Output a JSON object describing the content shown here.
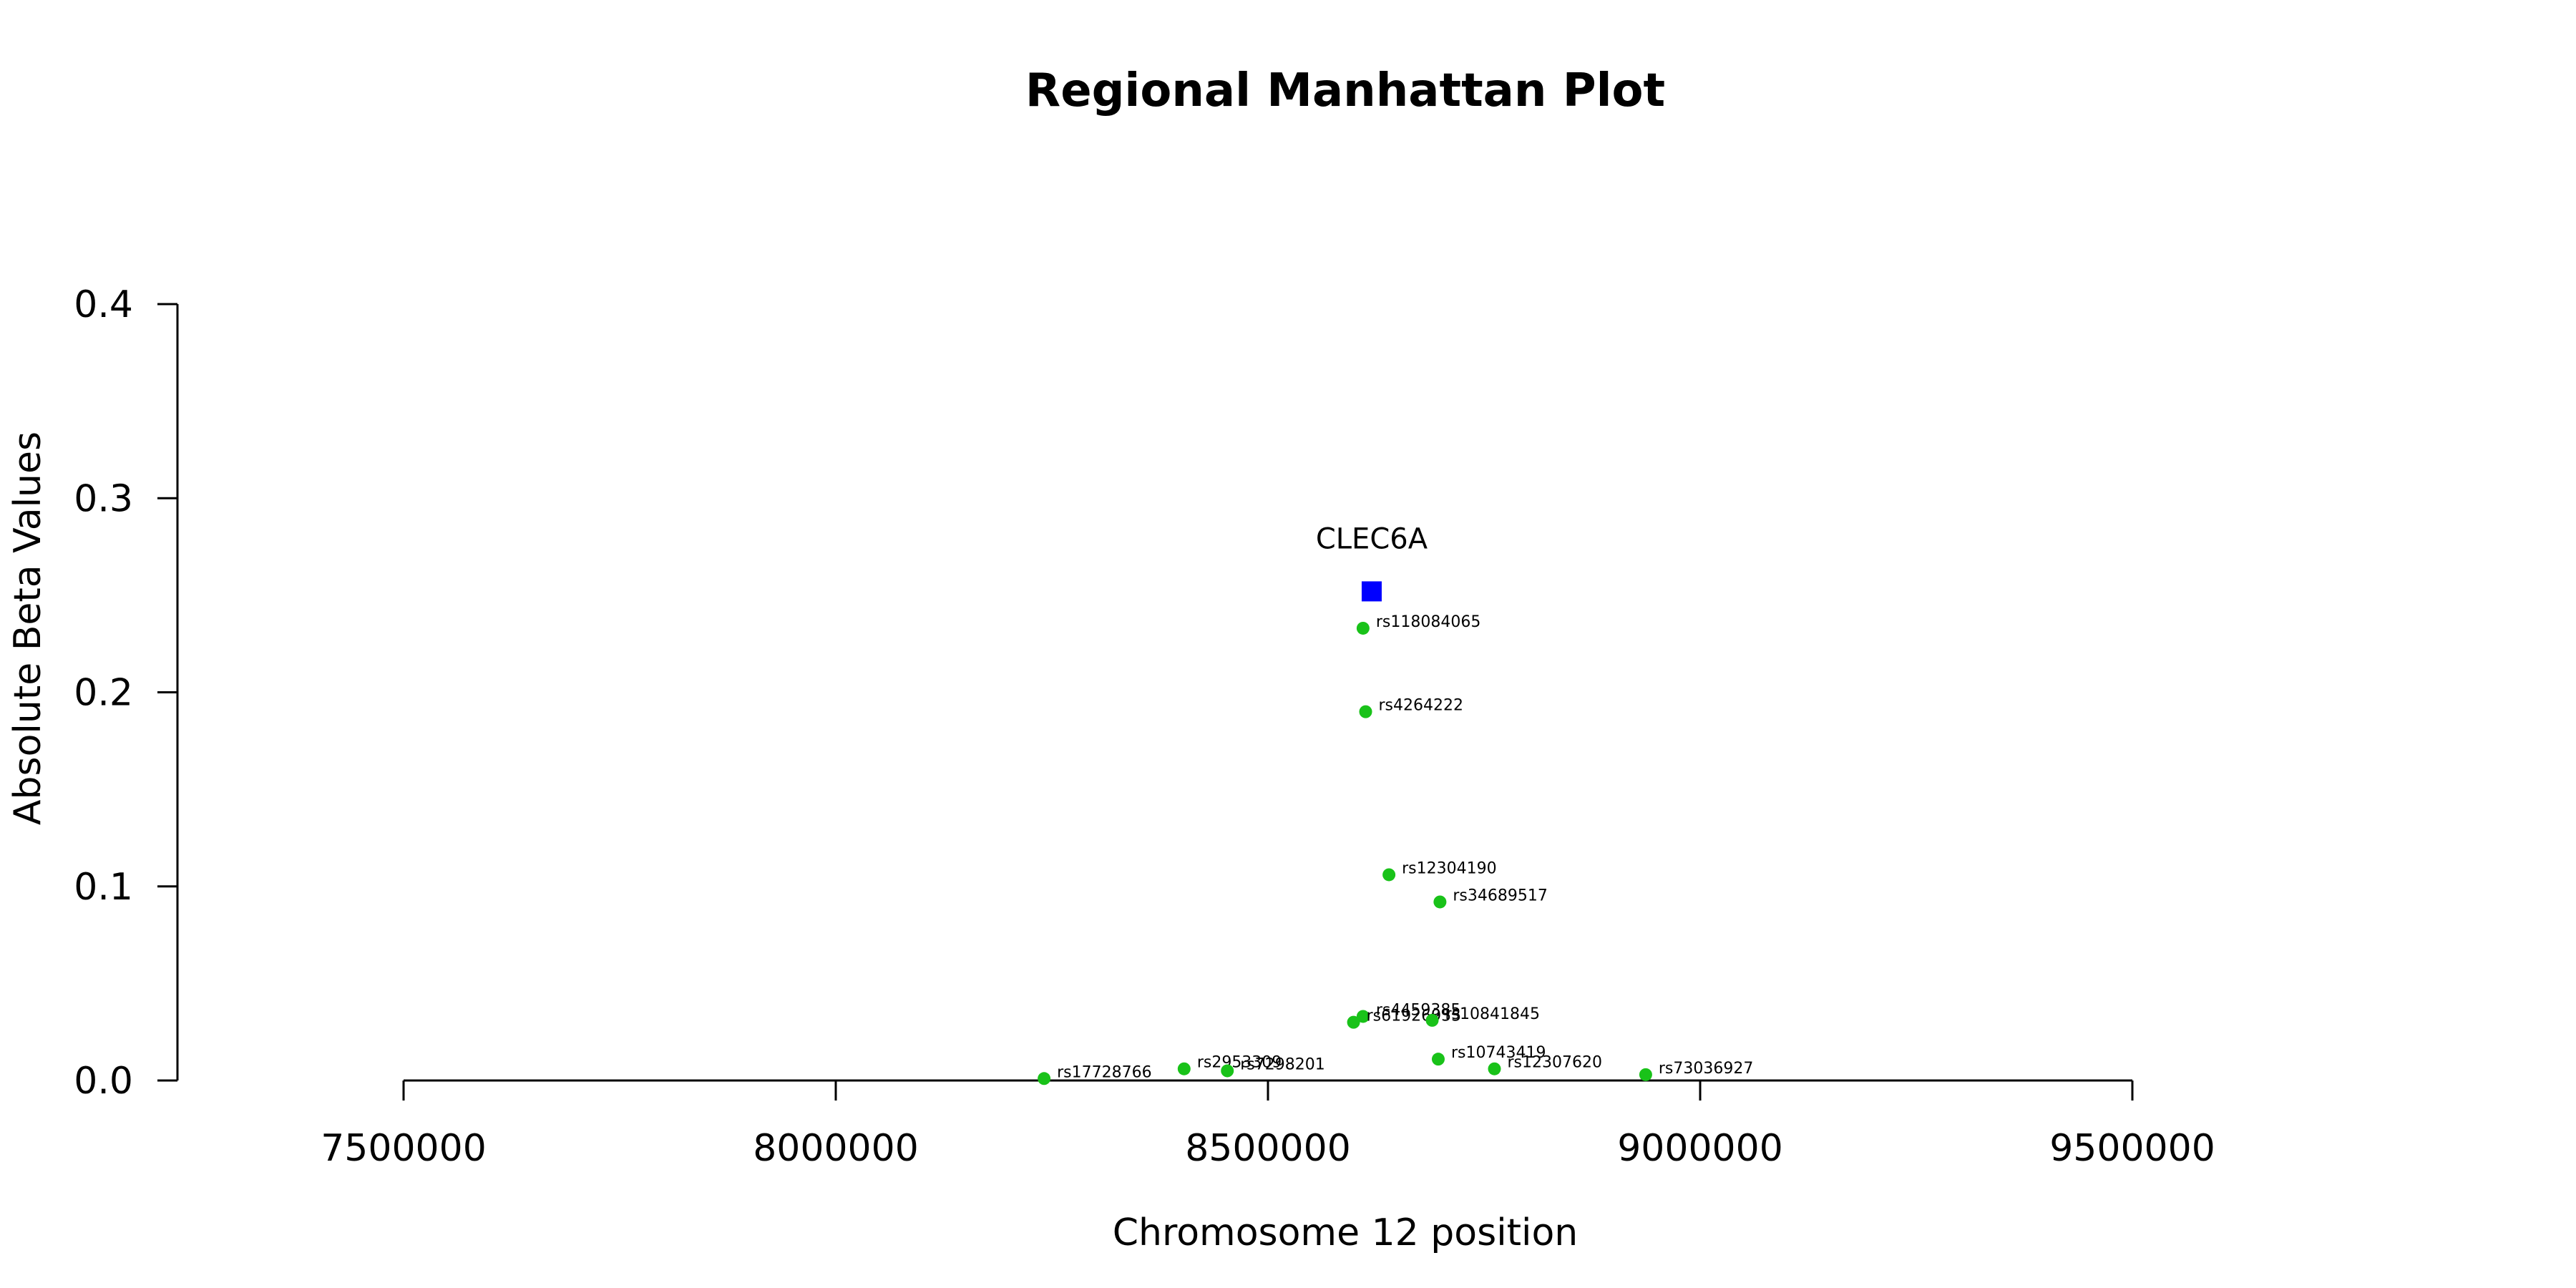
{
  "chart_data": {
    "type": "scatter",
    "title": "Regional Manhattan Plot",
    "xlabel": "Chromosome 12 position",
    "ylabel": "Absolute Beta Values",
    "xlim": [
      7500000,
      9500000
    ],
    "ylim": [
      0,
      0.4
    ],
    "x_ticks": [
      7500000,
      8000000,
      8500000,
      9000000,
      9500000
    ],
    "x_tick_labels": [
      "7500000",
      "8000000",
      "8500000",
      "9000000",
      "9500000"
    ],
    "y_ticks": [
      0.0,
      0.1,
      0.2,
      0.3,
      0.4
    ],
    "y_tick_labels": [
      "0.0",
      "0.1",
      "0.2",
      "0.3",
      "0.4"
    ],
    "grid": false,
    "colors": {
      "snp": "#19c219",
      "gene": "#0000ff"
    },
    "gene": {
      "name": "CLEC6A",
      "x": 8620000,
      "y": 0.252
    },
    "points": [
      {
        "label": "rs118084065",
        "x": 8610000,
        "y": 0.233
      },
      {
        "label": "rs4264222",
        "x": 8613000,
        "y": 0.19
      },
      {
        "label": "rs12304190",
        "x": 8640000,
        "y": 0.106
      },
      {
        "label": "rs34689517",
        "x": 8699000,
        "y": 0.092
      },
      {
        "label": "rs4459385",
        "x": 8610000,
        "y": 0.033
      },
      {
        "label": "rs61926955",
        "x": 8599000,
        "y": 0.03
      },
      {
        "label": "rs10841845",
        "x": 8690000,
        "y": 0.031
      },
      {
        "label": "rs10743419",
        "x": 8697000,
        "y": 0.011
      },
      {
        "label": "rs12307620",
        "x": 8762000,
        "y": 0.006
      },
      {
        "label": "rs73036927",
        "x": 8937000,
        "y": 0.003
      },
      {
        "label": "rs17728766",
        "x": 8241000,
        "y": 0.001
      },
      {
        "label": "rs2953309",
        "x": 8403000,
        "y": 0.006
      },
      {
        "label": "rs7298201",
        "x": 8453000,
        "y": 0.005
      }
    ]
  }
}
